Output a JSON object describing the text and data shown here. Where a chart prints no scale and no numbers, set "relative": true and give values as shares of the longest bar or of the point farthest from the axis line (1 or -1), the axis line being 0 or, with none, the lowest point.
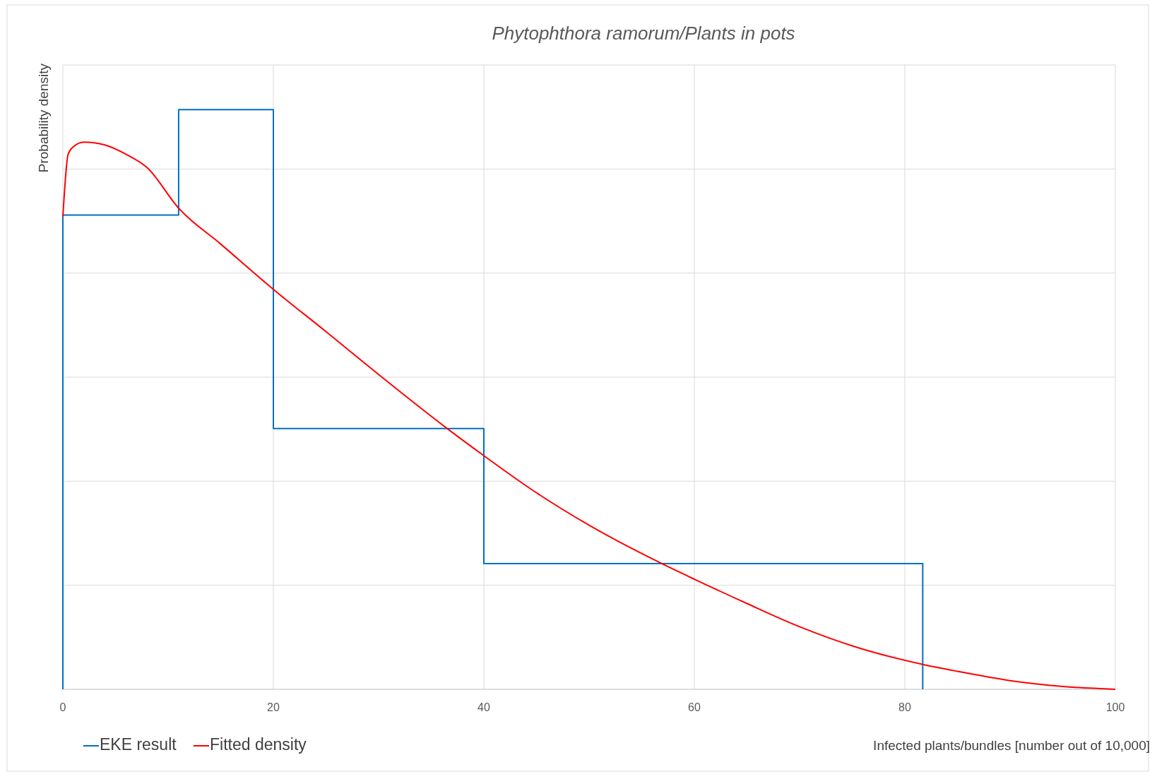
{
  "chart_data": {
    "type": "line",
    "title": "Phytophthora ramorum/Plants in pots",
    "xlabel": "Infected plants/bundles [number out of 10,000]",
    "ylabel": "Probability density",
    "relative": true,
    "xlim": [
      0,
      100
    ],
    "xticks": [
      0,
      20,
      40,
      60,
      80,
      100
    ],
    "grid": true,
    "legend": "bottom left",
    "series": [
      {
        "name": "EKE result",
        "type": "step",
        "color": "#0070c0",
        "x": [
          0,
          0,
          11,
          20,
          40,
          81.7
        ],
        "values": [
          0,
          0.818,
          1,
          0.45,
          0.217,
          0
        ]
      },
      {
        "name": "Fitted density",
        "color": "#ff0000",
        "x": [
          0,
          0.5,
          1,
          2,
          4,
          6,
          8,
          11,
          15,
          20,
          25,
          30,
          36.5,
          40,
          45,
          50,
          56.9,
          60,
          65,
          70,
          75,
          81.7,
          85,
          90,
          95,
          100
        ],
        "values": [
          0.815,
          0.923,
          0.936,
          0.944,
          0.939,
          0.923,
          0.9,
          0.83,
          0.768,
          0.69,
          0.617,
          0.543,
          0.45,
          0.403,
          0.339,
          0.283,
          0.217,
          0.19,
          0.148,
          0.108,
          0.075,
          0.043,
          0.031,
          0.015,
          0.005,
          0
        ]
      }
    ]
  }
}
